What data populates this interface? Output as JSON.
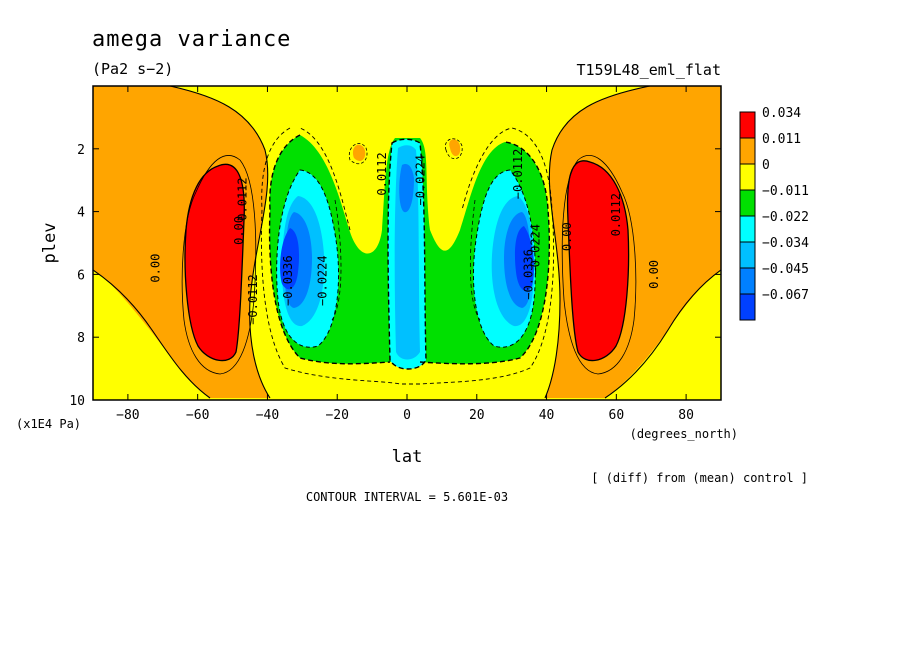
{
  "chart_data": {
    "type": "heatmap",
    "title": "amega variance",
    "units": "(Pa2 s−2)",
    "experiment": "T159L48_eml_flat",
    "xlabel": "lat",
    "xunits": "(degrees_north)",
    "ylabel": "plev",
    "yunits": "(x1E4 Pa)",
    "xlim": [
      -90,
      90
    ],
    "ylim": [
      0,
      10
    ],
    "yaxis_inverted": true,
    "xticks": [
      -80,
      -60,
      -40,
      -20,
      0,
      20,
      40,
      60,
      80
    ],
    "xtick_labels": [
      "−80",
      "−60",
      "−40",
      "−20",
      "0",
      "20",
      "40",
      "60",
      "80"
    ],
    "yticks": [
      2,
      4,
      6,
      8,
      10
    ],
    "ytick_labels": [
      "2",
      "4",
      "6",
      "8",
      "10"
    ],
    "note": "[ (diff) from (mean) control ]",
    "contour_interval": "CONTOUR INTERVAL = 5.601E-03",
    "colorbar": [
      {
        "label": "0.034",
        "color": "#ff0000"
      },
      {
        "label": "0.011",
        "color": "#ffa500"
      },
      {
        "label": "0",
        "color": "#ffff00"
      },
      {
        "label": "−0.011",
        "color": "#00e000"
      },
      {
        "label": "−0.022",
        "color": "#00ffff"
      },
      {
        "label": "−0.034",
        "color": "#00c0ff"
      },
      {
        "label": "−0.045",
        "color": "#0080ff"
      },
      {
        "label": "−0.067",
        "color": "#0040ff"
      }
    ],
    "contour_labels": [
      {
        "text": "0.00",
        "lat": -71,
        "plev": 5.8
      },
      {
        "text": "0.00",
        "lat": -47,
        "plev": 4.6
      },
      {
        "text": "0.0112",
        "lat": -46,
        "plev": 3.6
      },
      {
        "text": "−0.0112",
        "lat": -43,
        "plev": 6.8
      },
      {
        "text": "−0.0336",
        "lat": -33,
        "plev": 6.2
      },
      {
        "text": "−0.0224",
        "lat": -23,
        "plev": 6.2
      },
      {
        "text": "0.0112",
        "lat": -6,
        "plev": 2.8
      },
      {
        "text": "−0.0224",
        "lat": 5,
        "plev": 3.0
      },
      {
        "text": "−0.0112",
        "lat": 33,
        "plev": 2.8
      },
      {
        "text": "−0.0224",
        "lat": 38,
        "plev": 5.2
      },
      {
        "text": "−0.0336",
        "lat": 36,
        "plev": 6.0
      },
      {
        "text": "0.00",
        "lat": 47,
        "plev": 4.8
      },
      {
        "text": "0.0112",
        "lat": 61,
        "plev": 4.1
      },
      {
        "text": "0.00",
        "lat": 72,
        "plev": 6.0
      }
    ]
  }
}
